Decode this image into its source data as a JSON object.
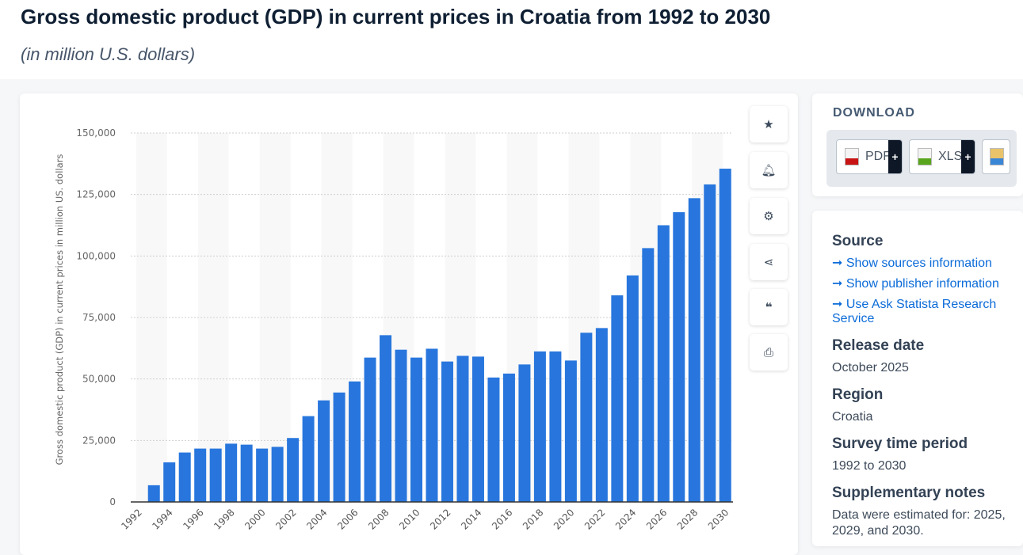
{
  "header": {
    "title": "Gross domestic product (GDP) in current prices in Croatia from 1992 to 2030",
    "subtitle": "(in million U.S. dollars)"
  },
  "toolbar": {
    "icons": [
      "star-icon",
      "bell-icon",
      "gear-icon",
      "share-icon",
      "quote-icon",
      "print-icon"
    ]
  },
  "download": {
    "heading": "DOWNLOAD",
    "buttons": [
      {
        "label": "PDF",
        "icon": "pdf-file-icon",
        "color": "#c81414"
      },
      {
        "label": "XLS",
        "icon": "xls-file-icon",
        "color": "#5aa51e"
      },
      {
        "label": "",
        "icon": "image-file-icon"
      }
    ],
    "plus": "+"
  },
  "info": {
    "source_label": "Source",
    "links": [
      "Show sources information",
      "Show publisher information",
      "Use Ask Statista Research Service"
    ],
    "release_label": "Release date",
    "release": "October 2025",
    "region_label": "Region",
    "region": "Croatia",
    "period_label": "Survey time period",
    "period": "1992 to 2030",
    "notes_label": "Supplementary notes",
    "notes_line1": "Data were estimated for: 2025,",
    "notes_line2": "2029, and 2030."
  },
  "chart_data": {
    "type": "bar",
    "title": "",
    "xlabel": "",
    "ylabel": "Gross domestic product (GDP) in current prices in million US. dollars",
    "ylim": [
      0,
      150000
    ],
    "yticks": [
      0,
      25000,
      50000,
      75000,
      100000,
      125000,
      150000
    ],
    "ytick_labels": [
      "0",
      "25,000",
      "50,000",
      "75,000",
      "100,000",
      "125,000",
      "150,000"
    ],
    "grid": true,
    "bar_color": "#2876dd",
    "categories": [
      "1992",
      "1993",
      "1994",
      "1995",
      "1996",
      "1997",
      "1998",
      "1999",
      "2000",
      "2001",
      "2002",
      "2003",
      "2004",
      "2005",
      "2006",
      "2007",
      "2008",
      "2009",
      "2010",
      "2011",
      "2012",
      "2013",
      "2014",
      "2015",
      "2016",
      "2017",
      "2018",
      "2019",
      "2020",
      "2021",
      "2022",
      "2023",
      "2024",
      "2025",
      "2026",
      "2027",
      "2028",
      "2029",
      "2030"
    ],
    "xtick_labels": [
      "1992",
      "1994",
      "1996",
      "1998",
      "2000",
      "2002",
      "2004",
      "2006",
      "2008",
      "2010",
      "2012",
      "2014",
      "2016",
      "2018",
      "2020",
      "2022",
      "2024",
      "2026",
      "2028",
      "2030"
    ],
    "values": [
      null,
      6800,
      16100,
      20100,
      21700,
      21700,
      23700,
      23300,
      21700,
      22400,
      26000,
      34900,
      41300,
      44500,
      49000,
      58700,
      67800,
      61900,
      58700,
      62300,
      57100,
      59400,
      59100,
      50600,
      52200,
      55900,
      61200,
      61200,
      57500,
      68800,
      70700,
      84000,
      92100,
      103200,
      112500,
      117800,
      123500,
      129100,
      135500
    ]
  }
}
